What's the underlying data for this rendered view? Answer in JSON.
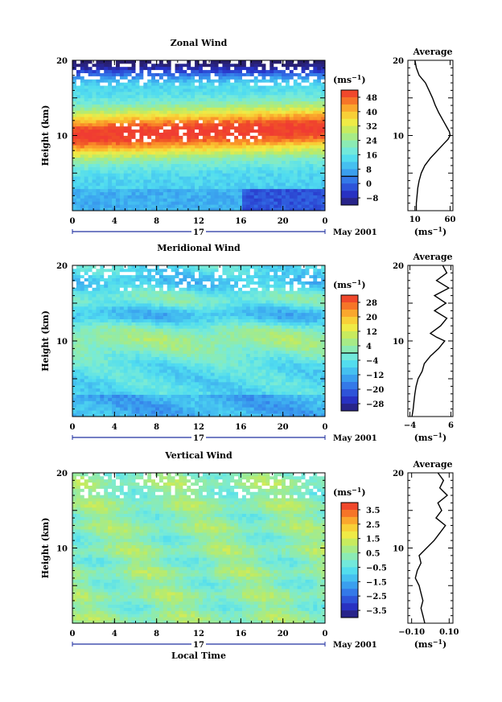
{
  "chart_data": [
    {
      "type": "heatmap",
      "title": "Zonal Wind",
      "ylabel": "Height (km)",
      "ylim": [
        0,
        20
      ],
      "yticks": [
        10,
        20
      ],
      "xticks": [
        "0",
        "4",
        "8",
        "12",
        "16",
        "20",
        "0"
      ],
      "xlim": [
        0,
        24
      ],
      "date_label": "17",
      "month_label": "May 2001",
      "colorbar_unit": "(ms",
      "colorbar_unit_exp": "−1",
      "colorbar_unit_close": ")",
      "colorbar_ticks": [
        "48",
        "40",
        "32",
        "24",
        "16",
        "8",
        "0",
        "−8"
      ],
      "colorbar_range": [
        -12,
        52
      ],
      "average": {
        "title": "Average",
        "xticks": [
          "10",
          "60"
        ],
        "xlim": [
          0,
          64
        ],
        "xlabel": "(ms",
        "xlabel_exp": "−1",
        "xlabel_close": ")",
        "profile": [
          [
            0,
            12
          ],
          [
            1,
            12
          ],
          [
            2,
            13
          ],
          [
            3,
            14
          ],
          [
            4,
            16
          ],
          [
            5,
            19
          ],
          [
            6,
            24
          ],
          [
            7,
            32
          ],
          [
            8,
            42
          ],
          [
            9,
            52
          ],
          [
            9.5,
            57
          ],
          [
            10,
            60
          ],
          [
            10.5,
            59
          ],
          [
            11,
            56
          ],
          [
            12,
            50
          ],
          [
            13,
            44
          ],
          [
            14,
            39
          ],
          [
            15,
            35
          ],
          [
            16,
            30
          ],
          [
            17,
            25
          ],
          [
            18,
            16
          ],
          [
            19,
            12
          ],
          [
            20,
            10
          ]
        ]
      }
    },
    {
      "type": "heatmap",
      "title": "Meridional Wind",
      "ylabel": "Height (km)",
      "ylim": [
        0,
        20
      ],
      "yticks": [
        10,
        20
      ],
      "xticks": [
        "0",
        "4",
        "8",
        "12",
        "16",
        "20",
        "0"
      ],
      "xlim": [
        0,
        24
      ],
      "date_label": "17",
      "month_label": "May 2001",
      "colorbar_unit": "(ms",
      "colorbar_unit_exp": "−1",
      "colorbar_unit_close": ")",
      "colorbar_ticks": [
        "28",
        "20",
        "12",
        "4",
        "−4",
        "−12",
        "−20",
        "−28"
      ],
      "colorbar_range": [
        -32,
        32
      ],
      "average": {
        "title": "Average",
        "xticks": [
          "−4",
          "6"
        ],
        "xlim": [
          -4.5,
          6.5
        ],
        "xlabel": "(ms",
        "xlabel_exp": "−1",
        "xlabel_close": ")",
        "profile": [
          [
            0,
            -3.5
          ],
          [
            1,
            -3.2
          ],
          [
            2,
            -3.0
          ],
          [
            3,
            -2.8
          ],
          [
            4,
            -2.5
          ],
          [
            5,
            -2.0
          ],
          [
            6,
            -1.0
          ],
          [
            7,
            -0.5
          ],
          [
            8,
            1.0
          ],
          [
            9,
            3.0
          ],
          [
            10,
            4.5
          ],
          [
            10.5,
            2.5
          ],
          [
            11,
            1.0
          ],
          [
            12,
            3.5
          ],
          [
            13,
            5.0
          ],
          [
            14,
            2.0
          ],
          [
            15,
            4.8
          ],
          [
            16,
            2.0
          ],
          [
            17,
            5.5
          ],
          [
            18,
            2.5
          ],
          [
            19,
            5.0
          ],
          [
            20,
            4.0
          ]
        ]
      }
    },
    {
      "type": "heatmap",
      "title": "Vertical Wind",
      "ylabel": "Height (km)",
      "xlabel": "Local Time",
      "ylim": [
        0,
        20
      ],
      "yticks": [
        10,
        20
      ],
      "xticks": [
        "0",
        "4",
        "8",
        "12",
        "16",
        "20",
        "0"
      ],
      "xlim": [
        0,
        24
      ],
      "date_label": "17",
      "month_label": "May 2001",
      "colorbar_unit": "(ms",
      "colorbar_unit_exp": "−1",
      "colorbar_unit_close": ")",
      "colorbar_ticks": [
        "3.5",
        "2.5",
        "1.5",
        "0.5",
        "−0.5",
        "−1.5",
        "−2.5",
        "−3.5"
      ],
      "colorbar_range": [
        -4,
        4
      ],
      "average": {
        "title": "Average",
        "xticks": [
          "−0.10",
          "0.10"
        ],
        "xlim": [
          -0.12,
          0.12
        ],
        "xlabel": "(ms",
        "xlabel_exp": "−1",
        "xlabel_close": ")",
        "profile": [
          [
            0,
            -0.03
          ],
          [
            1,
            -0.04
          ],
          [
            2,
            -0.05
          ],
          [
            3,
            -0.04
          ],
          [
            4,
            -0.05
          ],
          [
            5,
            -0.06
          ],
          [
            6,
            -0.08
          ],
          [
            7,
            -0.07
          ],
          [
            8,
            -0.05
          ],
          [
            9,
            -0.06
          ],
          [
            10,
            -0.02
          ],
          [
            11,
            0.02
          ],
          [
            12,
            0.05
          ],
          [
            13,
            0.08
          ],
          [
            14,
            0.03
          ],
          [
            15,
            0.06
          ],
          [
            16,
            0.04
          ],
          [
            17,
            0.09
          ],
          [
            18,
            0.05
          ],
          [
            19,
            0.07
          ],
          [
            20,
            0.04
          ]
        ]
      }
    }
  ]
}
